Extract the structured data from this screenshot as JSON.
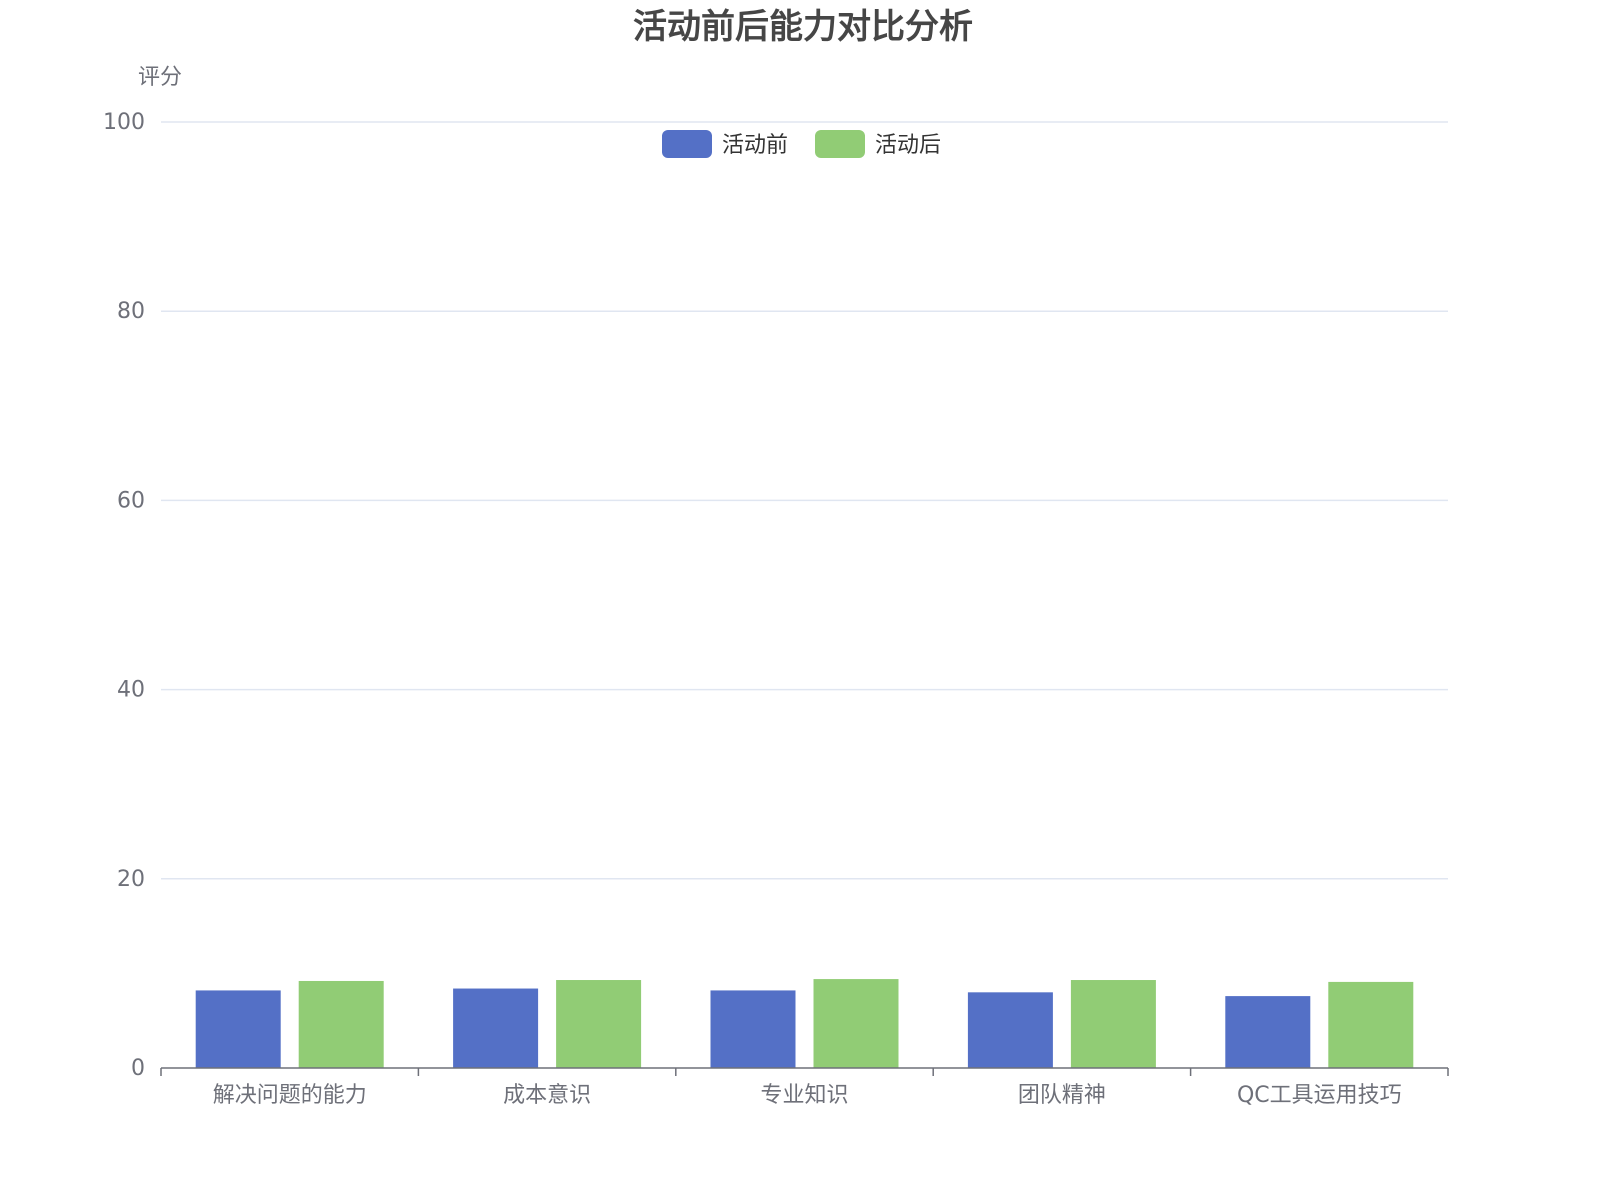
{
  "chart_data": {
    "type": "bar",
    "title": "活动前后能力对比分析",
    "ylabel": "评分",
    "xlabel": "",
    "ylim": [
      0,
      100
    ],
    "yticks": [
      0,
      20,
      40,
      60,
      80,
      100
    ],
    "grid": true,
    "legend_position": "top-center",
    "categories": [
      "解决问题的能力",
      "成本意识",
      "专业知识",
      "团队精神",
      "QC工具运用技巧"
    ],
    "series": [
      {
        "name": "活动前",
        "color": "#5470c6",
        "values": [
          8.2,
          8.4,
          8.2,
          8.0,
          7.6
        ]
      },
      {
        "name": "活动后",
        "color": "#91cc75",
        "values": [
          9.2,
          9.3,
          9.4,
          9.3,
          9.1
        ]
      }
    ]
  }
}
